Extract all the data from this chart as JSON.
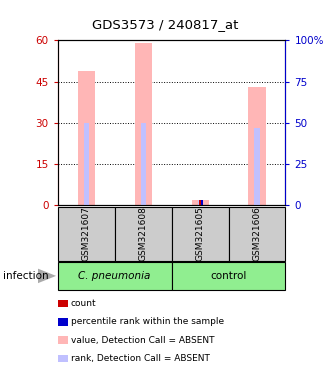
{
  "title": "GDS3573 / 240817_at",
  "samples": [
    "GSM321607",
    "GSM321608",
    "GSM321605",
    "GSM321606"
  ],
  "value_absent": [
    49,
    59,
    2,
    43
  ],
  "rank_absent": [
    30,
    30,
    2,
    28
  ],
  "count_values": [
    0,
    0,
    2,
    0
  ],
  "count_rank": [
    0,
    0,
    2,
    0
  ],
  "ylim_left": [
    0,
    60
  ],
  "ylim_right": [
    0,
    100
  ],
  "yticks_left": [
    0,
    15,
    30,
    45,
    60
  ],
  "yticks_right": [
    0,
    25,
    50,
    75,
    100
  ],
  "yticklabels_right": [
    "0",
    "25",
    "50",
    "75",
    "100%"
  ],
  "left_tick_color": "#cc0000",
  "right_tick_color": "#0000cc",
  "color_value_absent": "#ffb6b6",
  "color_rank_absent": "#c0c0ff",
  "color_count": "#cc0000",
  "color_rank": "#0000cc",
  "cpneumonia_color": "#90ee90",
  "control_color": "#90ee90",
  "sample_bg_color": "#cccccc",
  "legend_items": [
    {
      "color": "#cc0000",
      "label": "count"
    },
    {
      "color": "#0000cc",
      "label": "percentile rank within the sample"
    },
    {
      "color": "#ffb6b6",
      "label": "value, Detection Call = ABSENT"
    },
    {
      "color": "#c0c0ff",
      "label": "rank, Detection Call = ABSENT"
    }
  ]
}
